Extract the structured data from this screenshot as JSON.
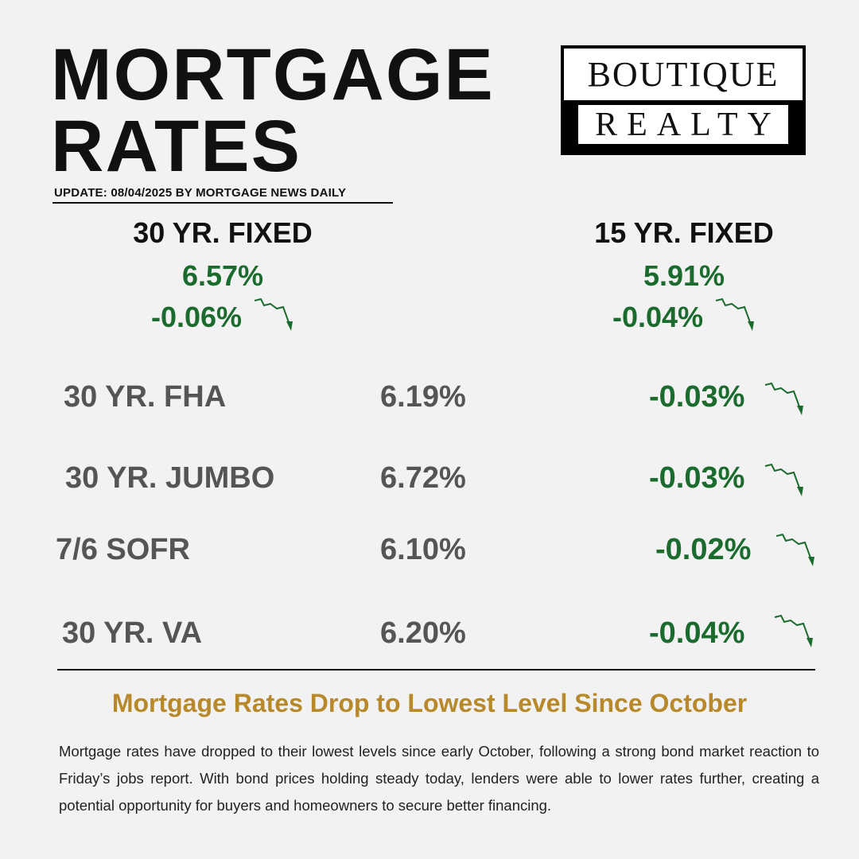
{
  "header": {
    "title_line1": "MORTGAGE",
    "title_line2": "RATES",
    "update": "UPDATE: 08/04/2025 BY MORTGAGE NEWS DAILY"
  },
  "logo": {
    "line1": "BOUTIQUE",
    "line2": "REALTY"
  },
  "fixed": [
    {
      "label": "30 YR. FIXED",
      "rate": "6.57%",
      "change": "-0.06%"
    },
    {
      "label": "15 YR. FIXED",
      "rate": "5.91%",
      "change": "-0.04%"
    }
  ],
  "rows": [
    {
      "label": "30 YR. FHA",
      "rate": "6.19%",
      "change": "-0.03%"
    },
    {
      "label": "30 YR. JUMBO",
      "rate": "6.72%",
      "change": "-0.03%"
    },
    {
      "label": "7/6 SOFR",
      "rate": "6.10%",
      "change": "-0.02%"
    },
    {
      "label": "30 YR. VA",
      "rate": "6.20%",
      "change": "-0.04%"
    }
  ],
  "article": {
    "headline": "Mortgage Rates Drop to Lowest Level Since October",
    "body": "Mortgage rates have dropped to their lowest levels since early October, following a strong bond market reaction to Friday’s jobs report. With bond prices holding steady today, lenders were able to lower rates further, creating a potential opportunity for buyers and homeowners to secure better financing."
  },
  "colors": {
    "green": "#1b6b2e",
    "gold": "#b8892a",
    "gray": "#555555"
  },
  "icons": {
    "trend": "trend-down-arrow-icon"
  }
}
